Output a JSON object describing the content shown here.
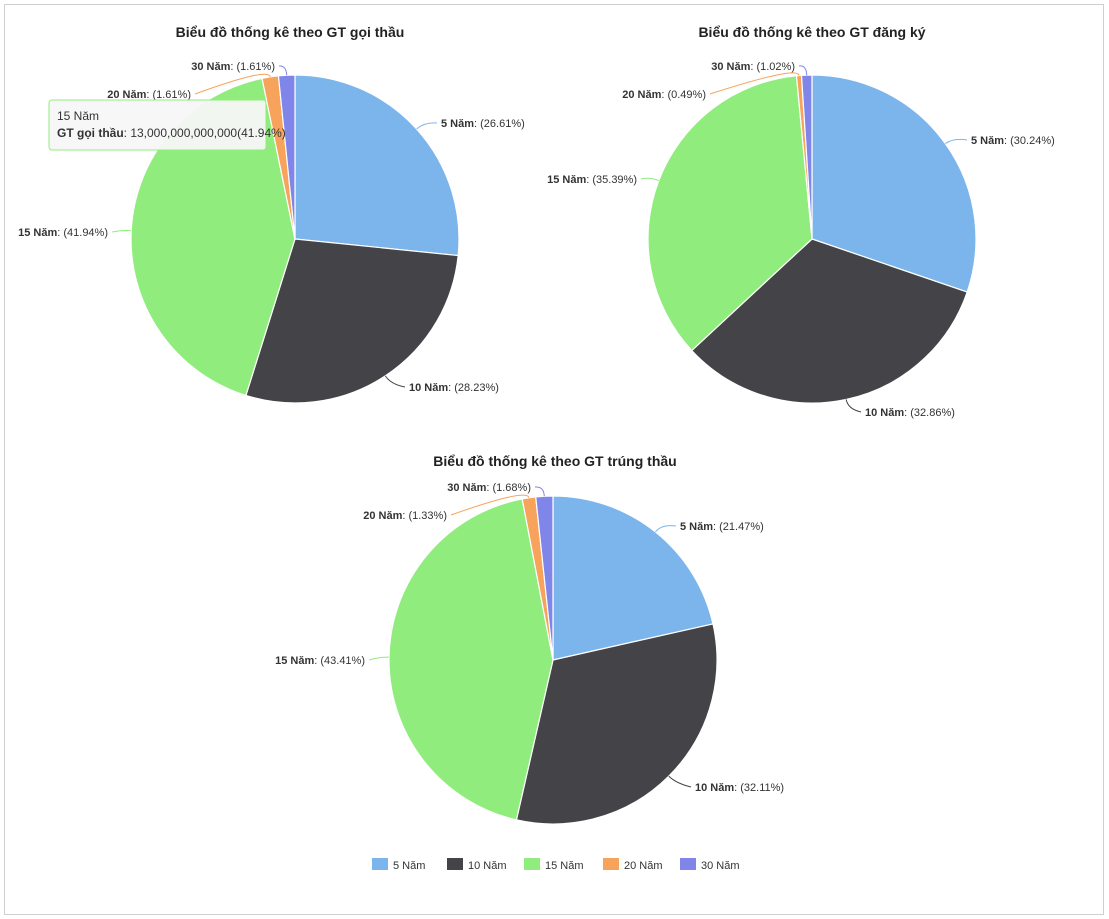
{
  "chart_data": [
    {
      "type": "pie",
      "title": "Biểu đồ thống kê theo GT gọi thầu",
      "slices": [
        {
          "name": "5 Năm",
          "percent": 26.61
        },
        {
          "name": "10 Năm",
          "percent": 28.23
        },
        {
          "name": "15 Năm",
          "percent": 41.94
        },
        {
          "name": "20 Năm",
          "percent": 1.61
        },
        {
          "name": "30 Năm",
          "percent": 1.61
        }
      ]
    },
    {
      "type": "pie",
      "title": "Biểu đồ thống kê theo GT đăng ký",
      "slices": [
        {
          "name": "5 Năm",
          "percent": 30.24
        },
        {
          "name": "10 Năm",
          "percent": 32.86
        },
        {
          "name": "15 Năm",
          "percent": 35.39
        },
        {
          "name": "20 Năm",
          "percent": 0.49
        },
        {
          "name": "30 Năm",
          "percent": 1.02
        }
      ]
    },
    {
      "type": "pie",
      "title": "Biểu đồ thống kê theo GT trúng thầu",
      "slices": [
        {
          "name": "5 Năm",
          "percent": 21.47
        },
        {
          "name": "10 Năm",
          "percent": 32.11
        },
        {
          "name": "15 Năm",
          "percent": 43.41
        },
        {
          "name": "20 Năm",
          "percent": 1.33
        },
        {
          "name": "30 Năm",
          "percent": 1.68
        }
      ]
    }
  ],
  "label_values": [
    [
      "(26.61%)",
      "(28.23%)",
      "(41.94%)",
      "(1.61%)",
      "(1.61%)"
    ],
    [
      "(30.24%)",
      "(32.86%)",
      "(35.39%)",
      "(0.49%)",
      "(1.02%)"
    ],
    [
      "(21.47%)",
      "(32.11%)",
      "(43.41%)",
      "(1.33%)",
      "(1.68%)"
    ]
  ],
  "series_colors": [
    "#7cb5ec",
    "#434348",
    "#90ed7d",
    "#f7a35c",
    "#8085e9"
  ],
  "legend": [
    "5 Năm",
    "10 Năm",
    "15 Năm",
    "20 Năm",
    "30 Năm"
  ],
  "tooltip": {
    "title": "15 Năm",
    "series_label": "GT gọi thầu",
    "value": ": 13,000,000,000,000(41.94%)"
  }
}
